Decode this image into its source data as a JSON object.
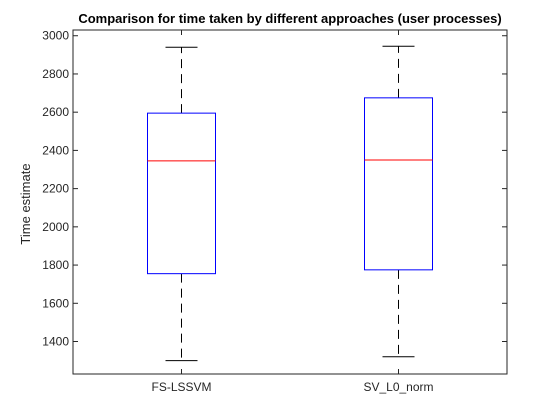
{
  "chart_data": {
    "type": "box",
    "title": "Comparison for time taken by different approaches (user processes)",
    "xlabel": "",
    "ylabel": "Time estimate",
    "ylim": [
      1230,
      3030
    ],
    "yticks": [
      1400,
      1600,
      1800,
      2000,
      2200,
      2400,
      2600,
      2800,
      3000
    ],
    "grid": false,
    "categories": [
      "FS-LSSVM",
      "SV_L0_norm"
    ],
    "boxes": [
      {
        "category": "FS-LSSVM",
        "min": 1300,
        "q1": 1755,
        "median": 2345,
        "q3": 2595,
        "max": 2940
      },
      {
        "category": "SV_L0_norm",
        "min": 1320,
        "q1": 1775,
        "median": 2350,
        "q3": 2675,
        "max": 2945
      }
    ],
    "colors": {
      "box": "#0000ff",
      "median": "#ff0000",
      "whisker": "#000000",
      "axes": "#262626"
    }
  }
}
